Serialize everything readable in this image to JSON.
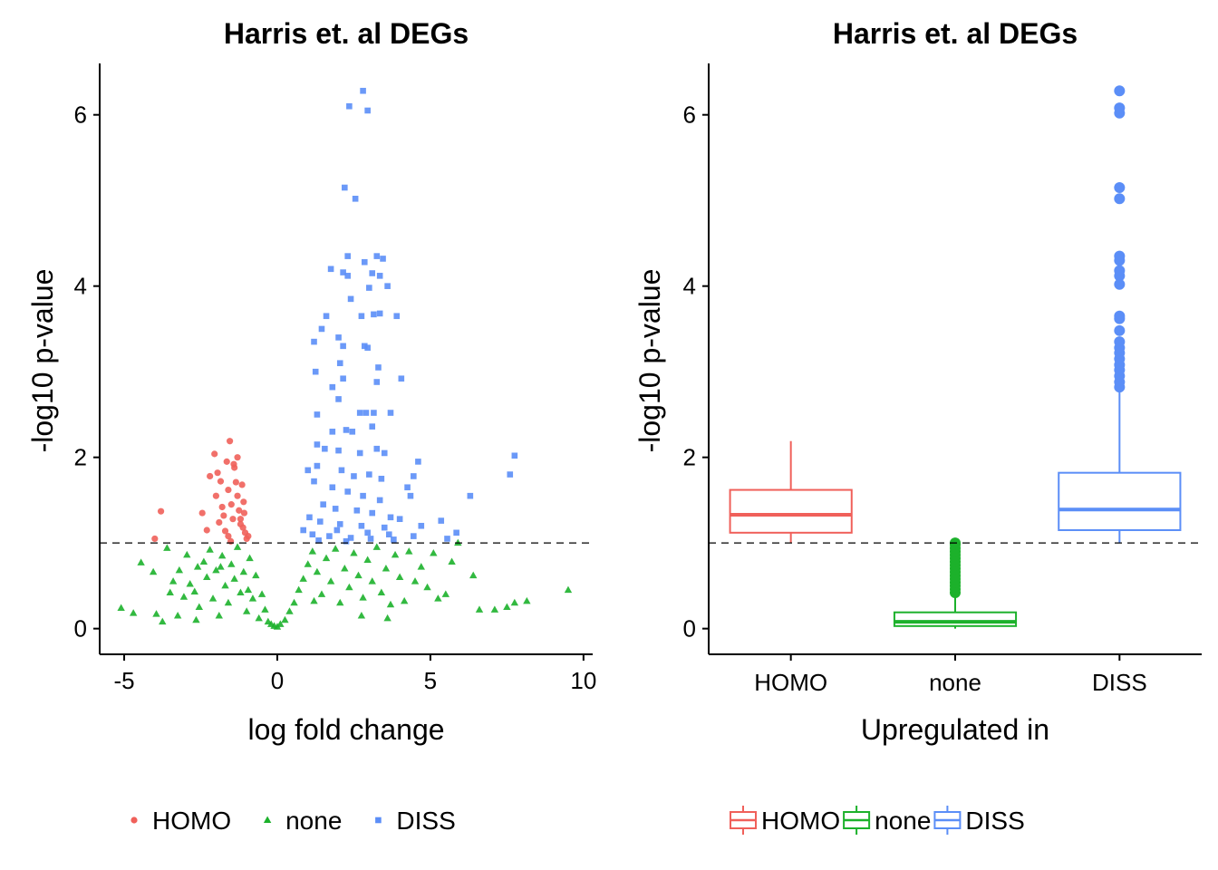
{
  "colors": {
    "HOMO": "#f0605a",
    "none": "#1cb12b",
    "DISS": "#5b8ef7"
  },
  "chart_data": [
    {
      "type": "scatter",
      "title": "Harris et. al DEGs",
      "xlabel": "log fold change",
      "ylabel": "-log10 p-value",
      "xlim": [
        -5.8,
        10.3
      ],
      "ylim": [
        -0.3,
        6.6
      ],
      "xticks": [
        -5,
        0,
        5,
        10
      ],
      "yticks": [
        0,
        2,
        4,
        6
      ],
      "threshold": 1.0,
      "legend_position": "bottom",
      "grid": false,
      "series": [
        {
          "name": "HOMO",
          "marker": "circle",
          "points": [
            [
              -4.0,
              1.05
            ],
            [
              -3.8,
              1.37
            ],
            [
              -2.2,
              1.78
            ],
            [
              -2.05,
              2.04
            ],
            [
              -1.95,
              1.82
            ],
            [
              -2.0,
              1.55
            ],
            [
              -1.85,
              1.72
            ],
            [
              -1.75,
              1.32
            ],
            [
              -1.7,
              1.14
            ],
            [
              -1.65,
              1.95
            ],
            [
              -1.55,
              2.19
            ],
            [
              -1.6,
              1.62
            ],
            [
              -1.5,
              1.45
            ],
            [
              -1.45,
              1.28
            ],
            [
              -1.4,
              1.88
            ],
            [
              -1.35,
              1.71
            ],
            [
              -1.3,
              1.55
            ],
            [
              -1.25,
              1.38
            ],
            [
              -1.2,
              1.22
            ],
            [
              -1.15,
              1.68
            ],
            [
              -1.1,
              1.48
            ],
            [
              -1.05,
              1.12
            ],
            [
              -1.0,
              1.05
            ],
            [
              -1.3,
              2.0
            ],
            [
              -1.42,
              1.92
            ],
            [
              -1.6,
              1.08
            ],
            [
              -1.9,
              1.24
            ],
            [
              -2.3,
              1.15
            ],
            [
              -1.8,
              1.42
            ],
            [
              -1.2,
              1.28
            ],
            [
              -0.95,
              1.08
            ],
            [
              -1.08,
              1.35
            ],
            [
              -1.52,
              1.02
            ],
            [
              -2.45,
              1.35
            ],
            [
              -1.12,
              1.18
            ]
          ]
        },
        {
          "name": "none",
          "marker": "triangle",
          "points": [
            [
              -5.1,
              0.24
            ],
            [
              -4.7,
              0.18
            ],
            [
              -4.45,
              0.77
            ],
            [
              -4.05,
              0.66
            ],
            [
              -3.95,
              0.17
            ],
            [
              -3.75,
              0.08
            ],
            [
              -3.6,
              0.94
            ],
            [
              -3.5,
              0.42
            ],
            [
              -3.4,
              0.55
            ],
            [
              -3.2,
              0.68
            ],
            [
              -3.05,
              0.37
            ],
            [
              -2.95,
              0.86
            ],
            [
              -2.85,
              0.52
            ],
            [
              -2.7,
              0.43
            ],
            [
              -2.6,
              0.72
            ],
            [
              -2.55,
              0.25
            ],
            [
              -2.4,
              0.78
            ],
            [
              -2.3,
              0.6
            ],
            [
              -2.2,
              0.92
            ],
            [
              -2.1,
              0.35
            ],
            [
              -2.0,
              0.68
            ],
            [
              -1.9,
              0.15
            ],
            [
              -1.8,
              0.85
            ],
            [
              -1.7,
              0.5
            ],
            [
              -1.6,
              0.3
            ],
            [
              -1.5,
              0.75
            ],
            [
              -1.4,
              0.58
            ],
            [
              -1.3,
              0.95
            ],
            [
              -1.2,
              0.42
            ],
            [
              -1.1,
              0.66
            ],
            [
              -1.0,
              0.2
            ],
            [
              -0.9,
              0.82
            ],
            [
              -0.8,
              0.35
            ],
            [
              -0.7,
              0.62
            ],
            [
              -0.6,
              0.12
            ],
            [
              -0.5,
              0.4
            ],
            [
              -0.4,
              0.22
            ],
            [
              -0.3,
              0.08
            ],
            [
              -0.2,
              0.05
            ],
            [
              -0.1,
              0.03
            ],
            [
              0.0,
              0.02
            ],
            [
              0.1,
              0.05
            ],
            [
              0.25,
              0.1
            ],
            [
              0.4,
              0.2
            ],
            [
              0.55,
              0.3
            ],
            [
              0.7,
              0.45
            ],
            [
              0.85,
              0.58
            ],
            [
              1.0,
              0.75
            ],
            [
              1.15,
              0.9
            ],
            [
              1.3,
              0.66
            ],
            [
              1.45,
              0.4
            ],
            [
              1.6,
              0.82
            ],
            [
              1.75,
              0.55
            ],
            [
              1.9,
              0.93
            ],
            [
              2.05,
              0.3
            ],
            [
              2.2,
              0.7
            ],
            [
              2.35,
              0.48
            ],
            [
              2.5,
              0.88
            ],
            [
              2.65,
              0.62
            ],
            [
              2.8,
              0.36
            ],
            [
              2.95,
              0.8
            ],
            [
              3.1,
              0.55
            ],
            [
              3.25,
              0.95
            ],
            [
              3.4,
              0.42
            ],
            [
              3.55,
              0.7
            ],
            [
              3.7,
              0.28
            ],
            [
              3.85,
              0.86
            ],
            [
              4.0,
              0.6
            ],
            [
              4.15,
              0.32
            ],
            [
              4.3,
              0.9
            ],
            [
              4.5,
              0.55
            ],
            [
              4.7,
              0.72
            ],
            [
              4.9,
              0.48
            ],
            [
              5.1,
              0.88
            ],
            [
              5.25,
              0.35
            ],
            [
              5.5,
              0.4
            ],
            [
              5.7,
              0.78
            ],
            [
              5.9,
              1.0
            ],
            [
              6.4,
              0.62
            ],
            [
              6.6,
              0.22
            ],
            [
              7.1,
              0.22
            ],
            [
              7.5,
              0.25
            ],
            [
              7.75,
              0.3
            ],
            [
              8.15,
              0.32
            ],
            [
              9.5,
              0.45
            ],
            [
              -1.85,
              0.72
            ],
            [
              -0.95,
              0.45
            ],
            [
              1.2,
              0.32
            ],
            [
              2.75,
              0.15
            ],
            [
              3.6,
              0.12
            ],
            [
              -2.65,
              0.1
            ],
            [
              -3.25,
              0.15
            ]
          ]
        },
        {
          "name": "DISS",
          "marker": "square",
          "points": [
            [
              2.8,
              6.28
            ],
            [
              2.35,
              6.1
            ],
            [
              2.95,
              6.05
            ],
            [
              2.2,
              5.15
            ],
            [
              2.55,
              5.02
            ],
            [
              2.3,
              4.35
            ],
            [
              3.25,
              4.35
            ],
            [
              3.45,
              4.32
            ],
            [
              2.85,
              4.28
            ],
            [
              2.15,
              4.16
            ],
            [
              2.3,
              4.12
            ],
            [
              3.1,
              4.15
            ],
            [
              3.35,
              4.12
            ],
            [
              1.75,
              4.2
            ],
            [
              3.6,
              4.0
            ],
            [
              3.0,
              3.98
            ],
            [
              2.4,
              3.85
            ],
            [
              1.6,
              3.65
            ],
            [
              2.75,
              3.65
            ],
            [
              3.15,
              3.67
            ],
            [
              3.35,
              3.68
            ],
            [
              3.9,
              3.65
            ],
            [
              1.45,
              3.5
            ],
            [
              1.2,
              3.35
            ],
            [
              2.0,
              3.4
            ],
            [
              2.15,
              3.3
            ],
            [
              2.85,
              3.3
            ],
            [
              2.95,
              3.28
            ],
            [
              1.25,
              3.0
            ],
            [
              2.05,
              3.1
            ],
            [
              3.3,
              3.05
            ],
            [
              2.15,
              2.92
            ],
            [
              3.25,
              2.88
            ],
            [
              4.05,
              2.92
            ],
            [
              1.8,
              2.82
            ],
            [
              2.0,
              2.68
            ],
            [
              2.7,
              2.52
            ],
            [
              2.9,
              2.52
            ],
            [
              3.15,
              2.52
            ],
            [
              3.7,
              2.52
            ],
            [
              1.3,
              2.5
            ],
            [
              3.1,
              2.36
            ],
            [
              2.25,
              2.32
            ],
            [
              2.45,
              2.3
            ],
            [
              1.8,
              2.3
            ],
            [
              1.3,
              2.15
            ],
            [
              1.55,
              2.1
            ],
            [
              2.0,
              2.08
            ],
            [
              2.7,
              2.05
            ],
            [
              3.25,
              2.1
            ],
            [
              3.5,
              2.05
            ],
            [
              4.6,
              1.95
            ],
            [
              7.75,
              2.02
            ],
            [
              7.6,
              1.8
            ],
            [
              4.45,
              1.78
            ],
            [
              1.0,
              1.85
            ],
            [
              1.3,
              1.9
            ],
            [
              2.1,
              1.85
            ],
            [
              2.5,
              1.78
            ],
            [
              3.0,
              1.8
            ],
            [
              3.4,
              1.75
            ],
            [
              4.25,
              1.65
            ],
            [
              4.35,
              1.55
            ],
            [
              6.3,
              1.55
            ],
            [
              1.2,
              1.72
            ],
            [
              1.8,
              1.65
            ],
            [
              2.3,
              1.6
            ],
            [
              2.8,
              1.55
            ],
            [
              3.35,
              1.5
            ],
            [
              1.5,
              1.45
            ],
            [
              1.9,
              1.4
            ],
            [
              2.6,
              1.38
            ],
            [
              3.1,
              1.35
            ],
            [
              3.7,
              1.3
            ],
            [
              4.0,
              1.28
            ],
            [
              5.35,
              1.26
            ],
            [
              5.85,
              1.12
            ],
            [
              5.55,
              1.05
            ],
            [
              1.05,
              1.3
            ],
            [
              1.4,
              1.25
            ],
            [
              2.05,
              1.22
            ],
            [
              2.75,
              1.2
            ],
            [
              3.5,
              1.18
            ],
            [
              4.7,
              1.2
            ],
            [
              1.15,
              1.1
            ],
            [
              1.7,
              1.08
            ],
            [
              2.4,
              1.06
            ],
            [
              3.05,
              1.05
            ],
            [
              3.8,
              1.04
            ],
            [
              4.45,
              1.08
            ],
            [
              0.85,
              1.15
            ],
            [
              1.95,
              1.15
            ],
            [
              2.95,
              1.12
            ],
            [
              3.65,
              1.1
            ],
            [
              1.35,
              1.03
            ],
            [
              2.25,
              1.02
            ]
          ]
        }
      ]
    },
    {
      "type": "box",
      "title": "Harris et. al DEGs",
      "xlabel": "Upregulated in",
      "ylabel": "-log10 p-value",
      "categories": [
        "HOMO",
        "none",
        "DISS"
      ],
      "ylim": [
        -0.3,
        6.6
      ],
      "yticks": [
        0,
        2,
        4,
        6
      ],
      "threshold": 1.0,
      "legend_position": "bottom",
      "grid": false,
      "boxes": [
        {
          "group": "HOMO",
          "whisker_low": 1.0,
          "q1": 1.12,
          "median": 1.33,
          "q3": 1.62,
          "whisker_high": 2.19,
          "outliers": []
        },
        {
          "group": "none",
          "whisker_low": 0.0,
          "q1": 0.03,
          "median": 0.08,
          "q3": 0.19,
          "whisker_high": 0.4,
          "outliers": [
            0.42,
            0.46,
            0.5,
            0.54,
            0.58,
            0.62,
            0.66,
            0.7,
            0.74,
            0.78,
            0.82,
            0.86,
            0.9,
            0.94,
            0.98,
            1.0
          ]
        },
        {
          "group": "DISS",
          "whisker_low": 1.0,
          "q1": 1.15,
          "median": 1.39,
          "q3": 1.82,
          "whisker_high": 2.78,
          "outliers": [
            2.82,
            2.88,
            2.95,
            3.02,
            3.08,
            3.15,
            3.22,
            3.28,
            3.35,
            3.48,
            3.62,
            3.65,
            4.02,
            4.12,
            4.18,
            4.3,
            4.35,
            5.02,
            5.15,
            6.02,
            6.08,
            6.28
          ]
        }
      ]
    }
  ]
}
